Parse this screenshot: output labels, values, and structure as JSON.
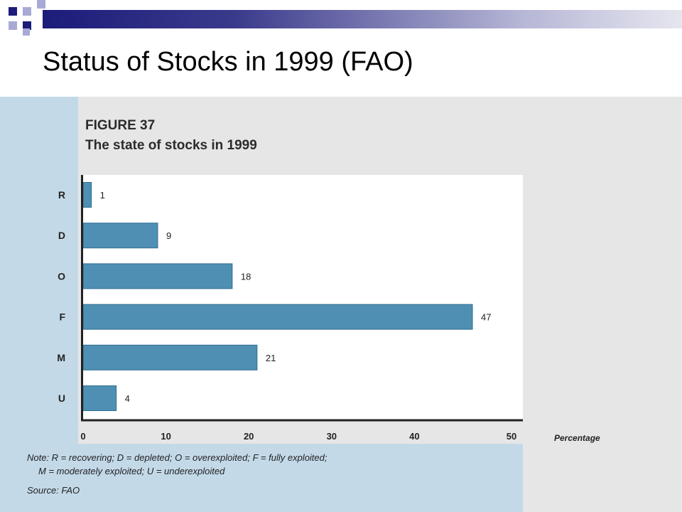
{
  "slide": {
    "title": "Status of Stocks in 1999 (FAO)"
  },
  "figure": {
    "label": "FIGURE 37",
    "subtitle": "The state of stocks in 1999",
    "note_line1": "Note: R = recovering; D = depleted; O = overexploited; F = fully exploited;",
    "note_line2": "M = moderately exploited; U = underexploited",
    "source": "Source: FAO"
  },
  "colors": {
    "bar": "#4f8fb3",
    "bar_edge": "#2f6f93",
    "plot_bg": "#ffffff",
    "figure_bg": "#e6e6e6",
    "figure_side": "#c3d9e8",
    "accent_navy": "#1c1c7a",
    "accent_lavender": "#a9a9d6"
  },
  "chart_data": {
    "type": "bar",
    "orientation": "horizontal",
    "title": "The state of stocks in 1999",
    "categories": [
      "R",
      "D",
      "O",
      "F",
      "M",
      "U"
    ],
    "values": [
      1,
      9,
      18,
      47,
      21,
      4
    ],
    "xlabel": "Percentage",
    "ylabel": "",
    "xlim": [
      0,
      50
    ],
    "xticks": [
      0,
      10,
      20,
      30,
      40,
      50
    ],
    "grid": false,
    "data_labels": true
  }
}
